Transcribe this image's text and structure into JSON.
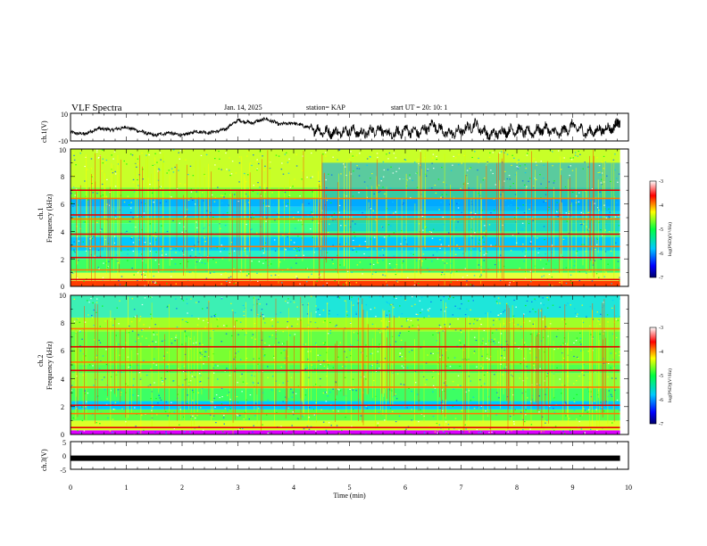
{
  "header": {
    "title": "VLF Spectra",
    "date": "Jan. 14, 2025",
    "station": "station= KAP",
    "start": "start  UT  =   20: 10: 1"
  },
  "chart_data": [
    {
      "type": "line",
      "name": "ch1-waveform",
      "ylabel": "ch.1(V)",
      "ylim": [
        -10,
        10
      ],
      "yticks": [
        "10",
        "-10"
      ],
      "xlim": [
        0,
        10
      ],
      "x": [
        0,
        0.25,
        0.5,
        0.75,
        1.0,
        1.25,
        1.5,
        1.75,
        2.0,
        2.25,
        2.5,
        2.75,
        3.0,
        3.25,
        3.5,
        3.75,
        4.0,
        4.25,
        4.5,
        4.75,
        5.0,
        5.25,
        5.5,
        5.75,
        6.0,
        6.25,
        6.5,
        6.75,
        7.0,
        7.25,
        7.5,
        7.75,
        8.0,
        8.25,
        8.5,
        8.75,
        9.0,
        9.25,
        9.5,
        9.75,
        9.85
      ],
      "values": [
        -4,
        -5,
        -1,
        -2,
        0,
        -3,
        -6,
        -4,
        -6,
        -3,
        -4,
        -2,
        5,
        3,
        6,
        2,
        3,
        0,
        -3,
        -4,
        -2,
        -5,
        -1,
        -6,
        -2,
        -4,
        2,
        -5,
        -3,
        2,
        -6,
        -3,
        -2,
        -4,
        -1,
        -5,
        1,
        -4,
        -2,
        0,
        4
      ]
    },
    {
      "type": "heatmap",
      "name": "ch1-spectrogram",
      "ylabel": "ch.1",
      "ylabel2": "Frequency (kHz)",
      "ylim": [
        0,
        10
      ],
      "yticks": [
        "0",
        "2",
        "4",
        "6",
        "8",
        "10"
      ],
      "xlim": [
        0,
        10
      ],
      "bands_khz": [
        0.5,
        1.2,
        2.1,
        2.9,
        3.8,
        4.9,
        5.2,
        6.4,
        7.0
      ],
      "colorbar": {
        "label": "log(PSD)(V²/Hz)",
        "range": [
          -7,
          -3
        ],
        "ticks": [
          "-3",
          "-4",
          "-5",
          "-6",
          "-7"
        ]
      }
    },
    {
      "type": "heatmap",
      "name": "ch2-spectrogram",
      "ylabel": "ch.2",
      "ylabel2": "Frequency (kHz)",
      "ylim": [
        0,
        10
      ],
      "yticks": [
        "0",
        "2",
        "4",
        "6",
        "8",
        "10"
      ],
      "xlim": [
        0,
        10
      ],
      "bands_khz": [
        0.5,
        1.5,
        2.1,
        3.4,
        4.6,
        5.2,
        6.3,
        7.6
      ],
      "colorbar": {
        "label": "log(PSD)(V²/Hz)",
        "range": [
          -7,
          -3
        ],
        "ticks": [
          "-3",
          "-4",
          "-5",
          "-6",
          "-7"
        ]
      }
    },
    {
      "type": "line",
      "name": "ch3-waveform",
      "ylabel": "ch.3(V)",
      "ylim": [
        -5,
        5
      ],
      "yticks": [
        "5",
        "0",
        "-5"
      ],
      "xlim": [
        0,
        10
      ],
      "x": [
        0,
        9.85
      ],
      "values": [
        -1,
        -1
      ],
      "xlabel": "Time (min)",
      "xticks": [
        "0",
        "1",
        "2",
        "3",
        "4",
        "5",
        "6",
        "7",
        "8",
        "9",
        "10"
      ]
    }
  ]
}
